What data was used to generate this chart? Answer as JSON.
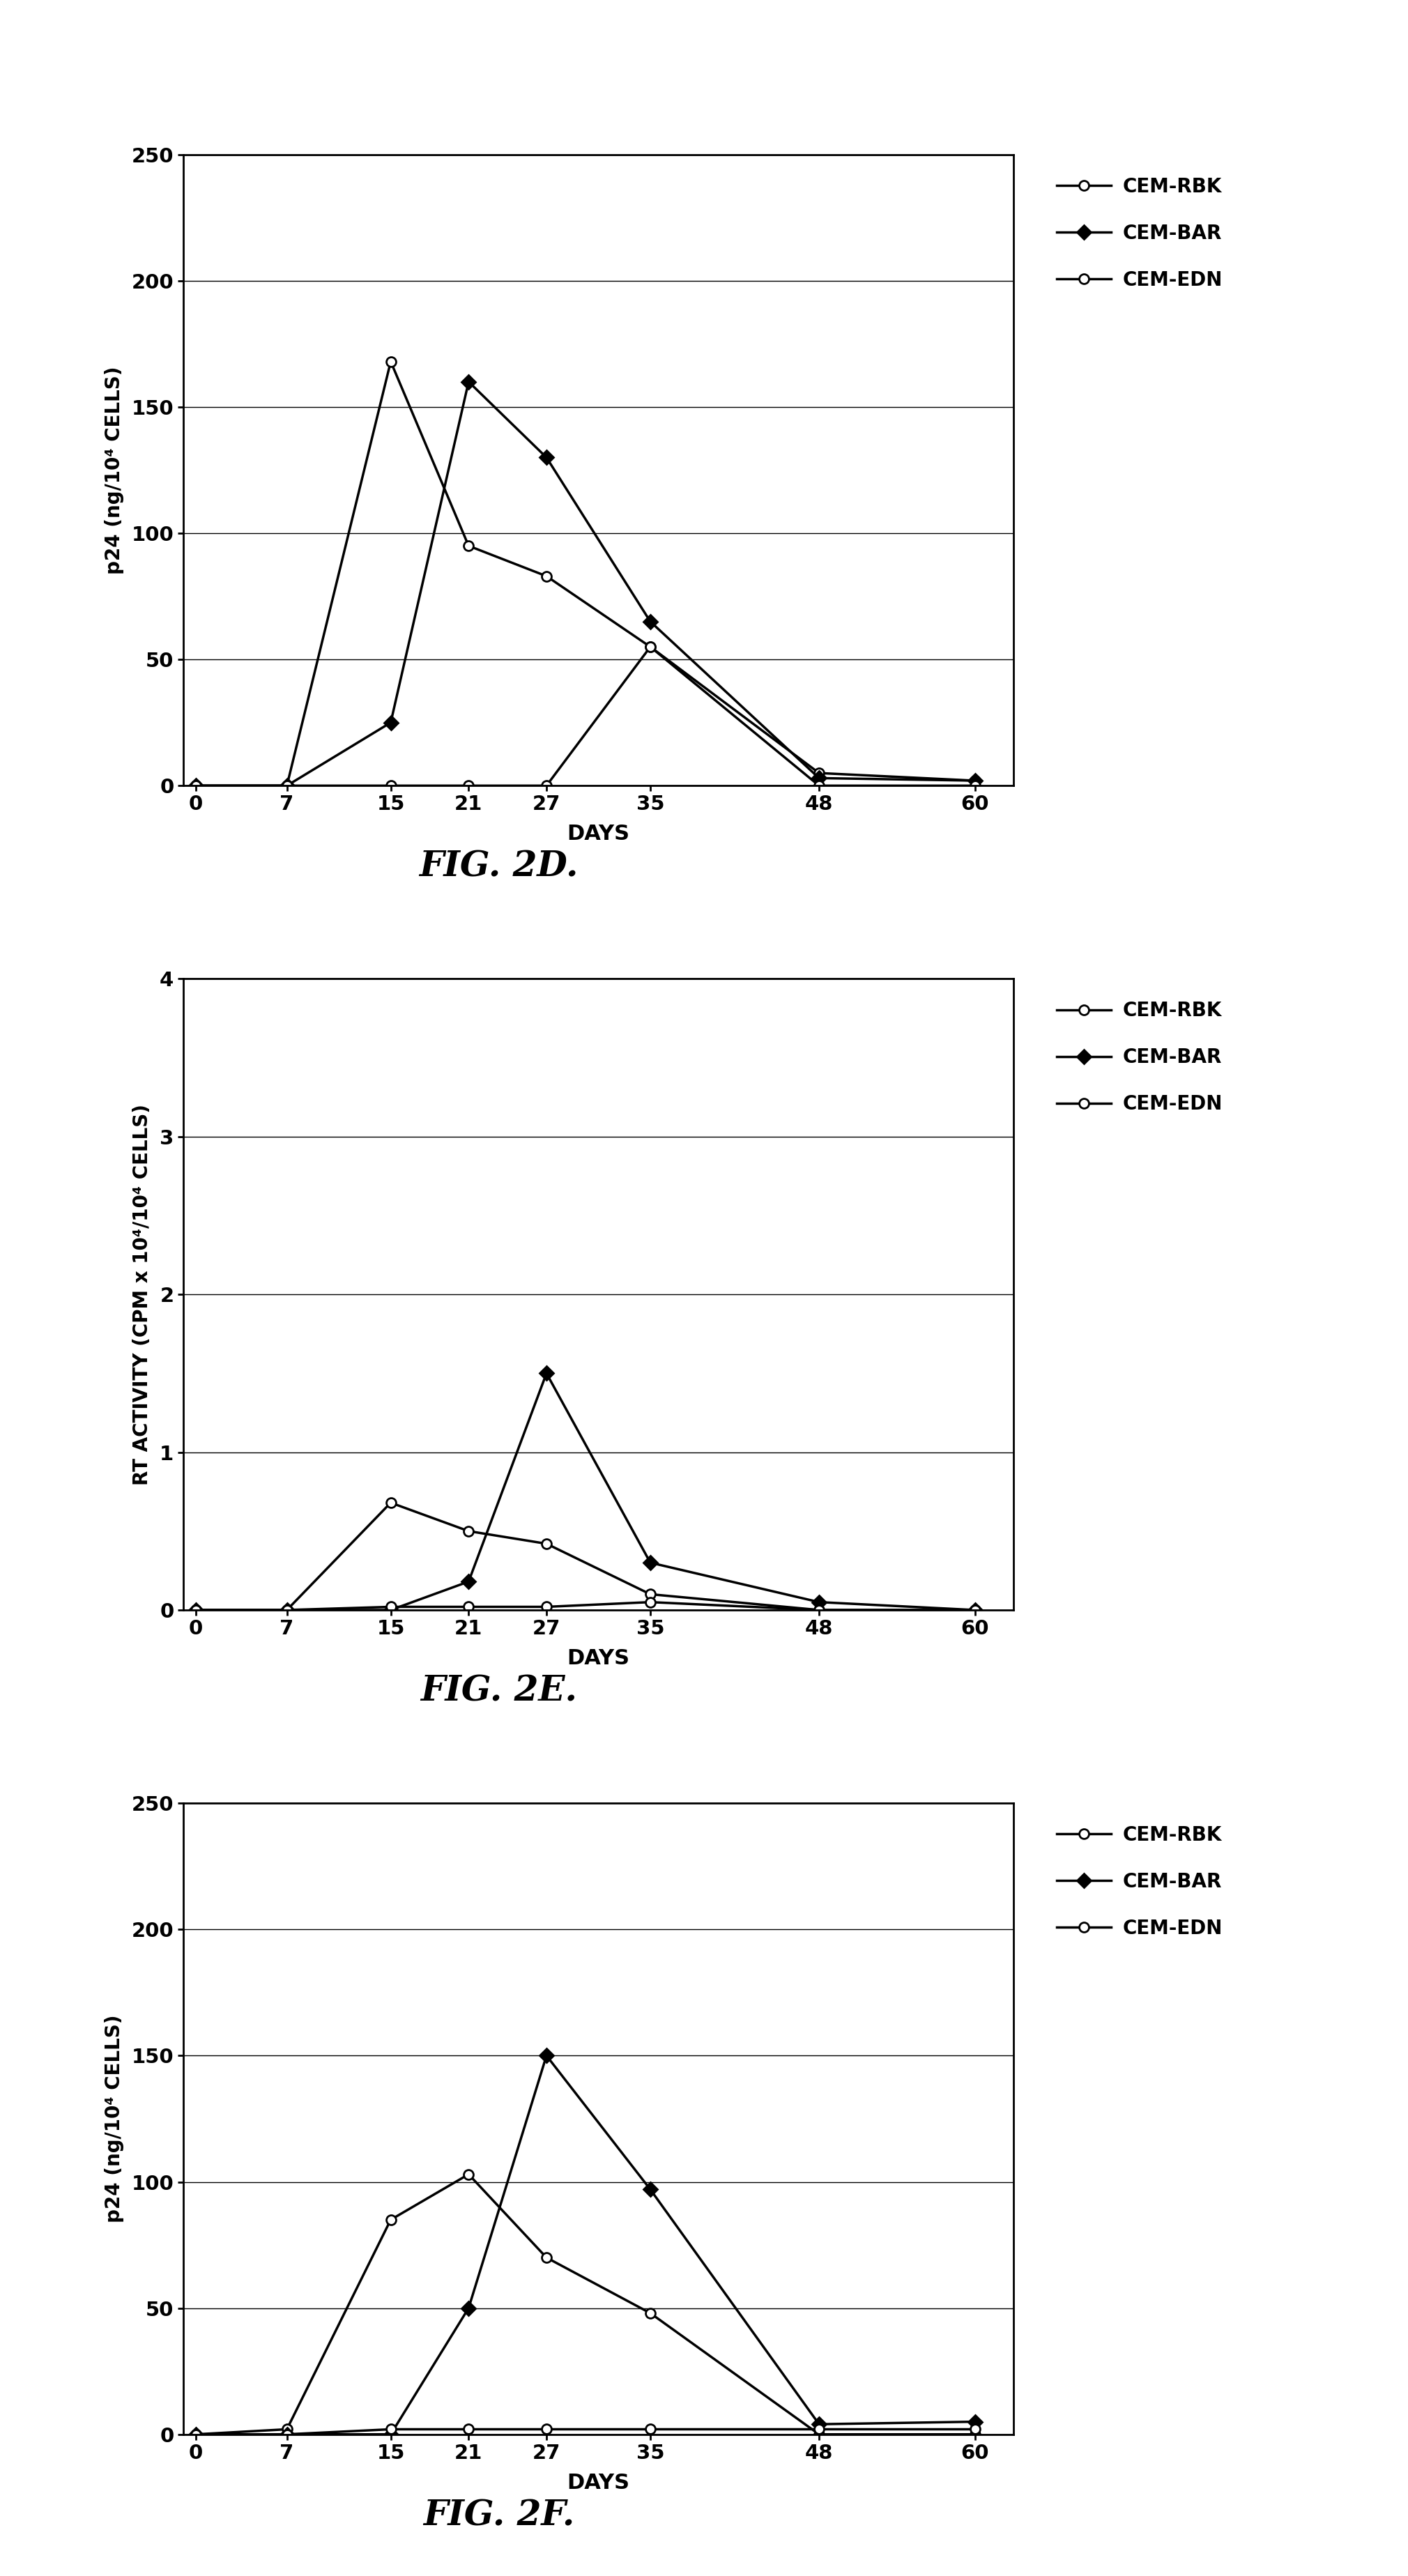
{
  "fig2d": {
    "title": "FIG. 2D.",
    "ylabel": "p24 (ng/10⁴ CELLS)",
    "xlabel": "DAYS",
    "ylim": [
      0,
      250
    ],
    "yticks": [
      0,
      50,
      100,
      150,
      200,
      250
    ],
    "xticks": [
      0,
      7,
      15,
      21,
      27,
      35,
      48,
      60
    ],
    "series": {
      "CEM-RBK": {
        "x": [
          0,
          7,
          15,
          21,
          27,
          35,
          48,
          60
        ],
        "y": [
          0,
          0,
          0,
          0,
          0,
          55,
          5,
          2
        ],
        "marker": "o",
        "fillstyle": "none",
        "markersize": 10
      },
      "CEM-BAR": {
        "x": [
          0,
          7,
          15,
          21,
          27,
          35,
          48,
          60
        ],
        "y": [
          0,
          0,
          25,
          160,
          130,
          65,
          3,
          2
        ],
        "marker": "D",
        "fillstyle": "full",
        "markersize": 10
      },
      "CEM-EDN": {
        "x": [
          0,
          7,
          15,
          21,
          27,
          35,
          48,
          60
        ],
        "y": [
          0,
          0,
          168,
          95,
          83,
          55,
          0,
          0
        ],
        "marker": "o",
        "fillstyle": "none",
        "markersize": 10
      }
    }
  },
  "fig2e": {
    "title": "FIG. 2E.",
    "ylabel": "RT ACTIVITY (CPM x 10⁴/10⁴ CELLS)",
    "xlabel": "DAYS",
    "ylim": [
      0,
      4
    ],
    "yticks": [
      0,
      1,
      2,
      3,
      4
    ],
    "xticks": [
      0,
      7,
      15,
      21,
      27,
      35,
      48,
      60
    ],
    "series": {
      "CEM-RBK": {
        "x": [
          0,
          7,
          15,
          21,
          27,
          35,
          48,
          60
        ],
        "y": [
          0,
          0,
          0.68,
          0.5,
          0.42,
          0.1,
          0,
          0
        ],
        "marker": "o",
        "fillstyle": "none",
        "markersize": 10
      },
      "CEM-BAR": {
        "x": [
          0,
          7,
          15,
          21,
          27,
          35,
          48,
          60
        ],
        "y": [
          0,
          0,
          0,
          0.18,
          1.5,
          0.3,
          0.05,
          0
        ],
        "marker": "D",
        "fillstyle": "full",
        "markersize": 10
      },
      "CEM-EDN": {
        "x": [
          0,
          7,
          15,
          21,
          27,
          35,
          48,
          60
        ],
        "y": [
          0,
          0,
          0.02,
          0.02,
          0.02,
          0.05,
          0,
          0
        ],
        "marker": "o",
        "fillstyle": "none",
        "markersize": 10
      }
    }
  },
  "fig2f": {
    "title": "FIG. 2F.",
    "ylabel": "p24 (ng/10⁴ CELLS)",
    "xlabel": "DAYS",
    "ylim": [
      0,
      250
    ],
    "yticks": [
      0,
      50,
      100,
      150,
      200,
      250
    ],
    "xticks": [
      0,
      7,
      15,
      21,
      27,
      35,
      48,
      60
    ],
    "series": {
      "CEM-RBK": {
        "x": [
          0,
          7,
          15,
          21,
          27,
          35,
          48,
          60
        ],
        "y": [
          0,
          2,
          85,
          103,
          70,
          48,
          0,
          0
        ],
        "marker": "o",
        "fillstyle": "none",
        "markersize": 10
      },
      "CEM-BAR": {
        "x": [
          0,
          7,
          15,
          21,
          27,
          35,
          48,
          60
        ],
        "y": [
          0,
          0,
          0,
          50,
          150,
          97,
          4,
          5
        ],
        "marker": "D",
        "fillstyle": "full",
        "markersize": 10
      },
      "CEM-EDN": {
        "x": [
          0,
          7,
          15,
          21,
          27,
          35,
          48,
          60
        ],
        "y": [
          0,
          0,
          2,
          2,
          2,
          2,
          2,
          2
        ],
        "marker": "o",
        "fillstyle": "none",
        "markersize": 10
      }
    }
  },
  "legend_labels": [
    "CEM-RBK",
    "CEM-BAR",
    "CEM-EDN"
  ],
  "line_color": "#000000",
  "background_color": "#ffffff",
  "title_fontsize": 36,
  "label_fontsize": 22,
  "tick_fontsize": 21,
  "legend_fontsize": 20
}
